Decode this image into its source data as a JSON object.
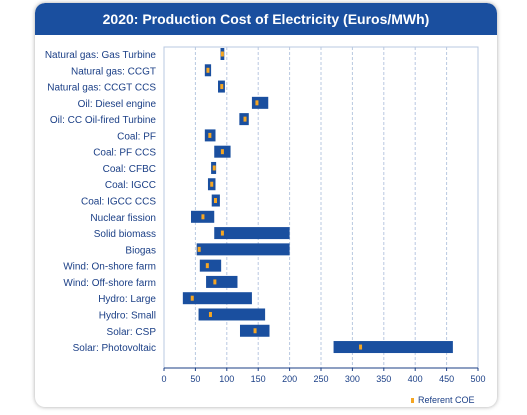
{
  "chart_data": {
    "type": "bar",
    "title": "2020: Production Cost of Electricity (Euros/MWh)",
    "xlim": [
      0,
      500
    ],
    "x_ticks": [
      "0",
      "50",
      "100",
      "150",
      "200",
      "250",
      "300",
      "350",
      "400",
      "450",
      "500"
    ],
    "grid": "vertical dashed",
    "legend_placement": "bottom-right",
    "categories": [
      "Natural gas: Gas Turbine",
      "Natural gas: CCGT",
      "Natural gas: CCGT CCS",
      "Oil: Diesel engine",
      "Oil: CC Oil-fired Turbine",
      "Coal: PF",
      "Coal: PF CCS",
      "Coal: CFBC",
      "Coal: IGCC",
      "Coal: IGCC CCS",
      "Nuclear fission",
      "Solid biomass",
      "Biogas",
      "Wind: On-shore farm",
      "Wind: Off-shore farm",
      "Hydro: Large",
      "Hydro: Small",
      "Solar: CSP",
      "Solar: Photovoltaic"
    ],
    "series": [
      {
        "name": "",
        "kind": "range",
        "color": "#1a4f9f",
        "low": [
          90,
          65,
          86,
          140,
          120,
          65,
          80,
          75,
          70,
          76,
          43,
          80,
          52,
          57,
          67,
          30,
          55,
          121,
          270
        ],
        "high": [
          96,
          75,
          97,
          166,
          135,
          82,
          106,
          83,
          82,
          89,
          80,
          200,
          200,
          91,
          117,
          140,
          161,
          168,
          460
        ]
      },
      {
        "name": "Referent COE",
        "kind": "marker",
        "color": "#f5a623",
        "values": [
          93,
          70,
          92,
          148,
          129,
          73,
          93,
          80,
          76,
          82,
          62,
          93,
          56,
          69,
          81,
          45,
          74,
          145,
          313
        ]
      }
    ],
    "legend": "Referent COE"
  },
  "colors": {
    "title_bar": "#1a4f9f",
    "bar": "#1a4f9f",
    "marker": "#f5a623",
    "grid": "#b8c8e0",
    "text": "#1b3f86"
  }
}
